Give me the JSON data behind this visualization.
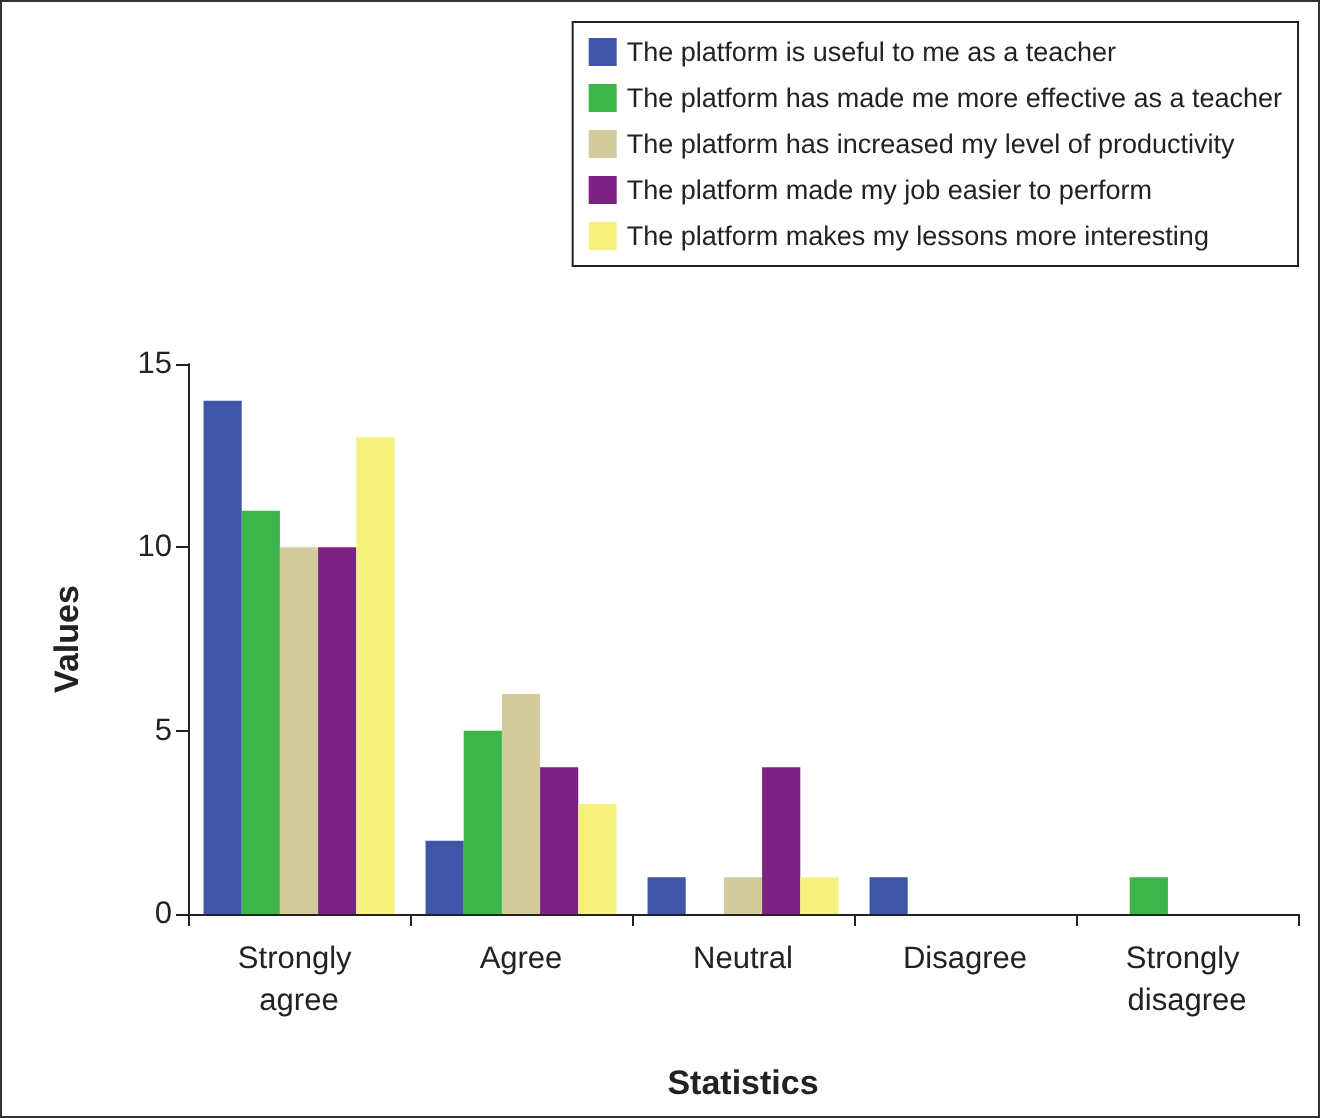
{
  "chart_data": {
    "type": "bar",
    "xlabel": "Statistics",
    "ylabel": "Values",
    "categories": [
      "Strongly agree",
      "Agree",
      "Neutral",
      "Disagree",
      "Strongly disagree"
    ],
    "series": [
      {
        "name": "The platform is useful to me as a teacher",
        "color": "#3f56a8",
        "values": [
          14,
          2,
          1,
          1,
          0
        ]
      },
      {
        "name": "The platform has made me more effective as a teacher",
        "color": "#3cb54a",
        "values": [
          11,
          5,
          0,
          0,
          1
        ]
      },
      {
        "name": "The platform has increased my level of productivity",
        "color": "#d3cb9c",
        "values": [
          10,
          6,
          1,
          0,
          0
        ]
      },
      {
        "name": "The platform made my job easier to perform",
        "color": "#7b2282",
        "values": [
          10,
          4,
          4,
          0,
          0
        ]
      },
      {
        "name": "The platform makes my lessons more interesting",
        "color": "#f6f07c",
        "values": [
          13,
          3,
          1,
          0,
          0
        ]
      }
    ],
    "ylim": [
      0,
      15
    ],
    "yticks": [
      0,
      5,
      10,
      15
    ],
    "grid": false,
    "legend": "top right"
  }
}
